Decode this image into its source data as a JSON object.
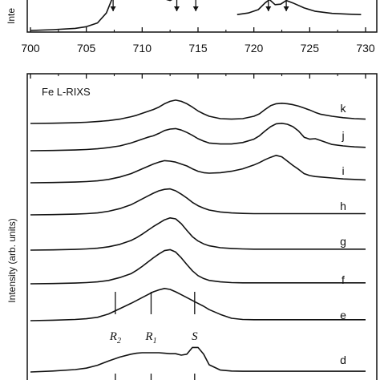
{
  "chart_data": [
    {
      "type": "line",
      "panel": "top",
      "ylabel": "Inte",
      "x_ticks": [
        "700",
        "705",
        "710",
        "715",
        "720",
        "725",
        "730"
      ],
      "xlim": [
        700,
        730
      ],
      "series": [
        {
          "x": [
            700,
            702,
            704,
            705,
            706,
            706.8,
            707.4,
            707.8,
            708.2
          ],
          "y": [
            0.0,
            0.02,
            0.05,
            0.09,
            0.18,
            0.42,
            0.82,
            0.95,
            1.0
          ]
        },
        {
          "x": [
            711.8,
            712.2,
            712.5,
            712.8,
            713.1
          ],
          "y": [
            0.9,
            0.74,
            0.72,
            0.76,
            0.86
          ]
        },
        {
          "x": [
            718.5,
            719.5,
            720.4,
            721.0,
            721.4,
            721.9,
            722.4,
            722.9,
            723.5,
            724.5,
            725.5,
            727,
            728.5,
            729.6
          ],
          "y": [
            0.38,
            0.42,
            0.5,
            0.66,
            0.74,
            0.62,
            0.63,
            0.72,
            0.66,
            0.54,
            0.46,
            0.41,
            0.39,
            0.38
          ]
        }
      ],
      "arrows_x": [
        707.4,
        713.1,
        714.8,
        721.3,
        722.9
      ]
    },
    {
      "type": "line",
      "panel": "bottom",
      "title": "Fe L-RIXS",
      "ylabel": "Intensity (arb. units)",
      "x": [
        700,
        702,
        704,
        705,
        706,
        707,
        708,
        709,
        709.5,
        710,
        710.5,
        711,
        711.5,
        712,
        712.5,
        713,
        713.5,
        714,
        714.5,
        715,
        715.5,
        716,
        717,
        718,
        719,
        720,
        720.5,
        721,
        721.5,
        722,
        722.5,
        723,
        723.5,
        724,
        724.5,
        725,
        725.5,
        726,
        727,
        728,
        729,
        730
      ],
      "series": [
        {
          "name": "k",
          "values": [
            0,
            0.01,
            0.03,
            0.05,
            0.08,
            0.12,
            0.18,
            0.28,
            0.34,
            0.42,
            0.5,
            0.58,
            0.68,
            0.82,
            0.92,
            0.97,
            0.92,
            0.82,
            0.68,
            0.52,
            0.4,
            0.3,
            0.2,
            0.18,
            0.2,
            0.3,
            0.4,
            0.58,
            0.74,
            0.82,
            0.84,
            0.82,
            0.78,
            0.72,
            0.64,
            0.56,
            0.46,
            0.38,
            0.3,
            0.24,
            0.2,
            0.18
          ]
        },
        {
          "name": "j",
          "values": [
            0,
            0.01,
            0.03,
            0.05,
            0.08,
            0.13,
            0.2,
            0.32,
            0.4,
            0.48,
            0.56,
            0.62,
            0.72,
            0.84,
            0.9,
            0.92,
            0.86,
            0.76,
            0.64,
            0.5,
            0.4,
            0.32,
            0.28,
            0.28,
            0.34,
            0.48,
            0.62,
            0.82,
            1.0,
            1.12,
            1.14,
            1.1,
            1.0,
            0.82,
            0.56,
            0.48,
            0.5,
            0.42,
            0.26,
            0.2,
            0.16,
            0.14
          ]
        },
        {
          "name": "i",
          "values": [
            0,
            0.01,
            0.03,
            0.05,
            0.08,
            0.14,
            0.24,
            0.38,
            0.48,
            0.58,
            0.68,
            0.78,
            0.86,
            0.92,
            0.9,
            0.86,
            0.78,
            0.7,
            0.58,
            0.48,
            0.42,
            0.4,
            0.42,
            0.48,
            0.58,
            0.74,
            0.84,
            0.96,
            1.06,
            1.14,
            1.08,
            0.9,
            0.72,
            0.56,
            0.38,
            0.3,
            0.26,
            0.24,
            0.2,
            0.16,
            0.14,
            0.12
          ]
        },
        {
          "name": "h",
          "values": [
            0,
            0.01,
            0.03,
            0.05,
            0.08,
            0.15,
            0.26,
            0.42,
            0.54,
            0.66,
            0.78,
            0.9,
            1.0,
            1.06,
            1.08,
            1.0,
            0.86,
            0.7,
            0.52,
            0.38,
            0.28,
            0.2,
            0.12,
            0.08,
            0.06,
            0.05,
            0.05,
            0.05,
            0.05,
            0.05,
            0.05,
            0.05,
            0.05,
            0.05,
            0.05,
            0.05,
            0.05,
            0.05,
            0.05,
            0.05,
            0.05,
            0.05
          ]
        },
        {
          "name": "g",
          "values": [
            0,
            0.01,
            0.03,
            0.05,
            0.08,
            0.14,
            0.24,
            0.4,
            0.52,
            0.66,
            0.82,
            0.98,
            1.12,
            1.26,
            1.34,
            1.3,
            1.1,
            0.82,
            0.56,
            0.38,
            0.26,
            0.18,
            0.1,
            0.07,
            0.05,
            0.04,
            0.04,
            0.04,
            0.04,
            0.04,
            0.04,
            0.04,
            0.04,
            0.04,
            0.04,
            0.04,
            0.04,
            0.04,
            0.04,
            0.04,
            0.04,
            0.04
          ]
        },
        {
          "name": "f",
          "values": [
            0,
            0.01,
            0.03,
            0.05,
            0.08,
            0.14,
            0.26,
            0.42,
            0.56,
            0.72,
            0.9,
            1.08,
            1.24,
            1.38,
            1.42,
            1.32,
            1.08,
            0.8,
            0.54,
            0.34,
            0.22,
            0.14,
            0.08,
            0.05,
            0.04,
            0.04,
            0.04,
            0.04,
            0.04,
            0.04,
            0.04,
            0.04,
            0.04,
            0.04,
            0.04,
            0.04,
            0.04,
            0.04,
            0.04,
            0.04,
            0.04,
            0.04
          ]
        },
        {
          "name": "e",
          "values": [
            0,
            0.02,
            0.05,
            0.08,
            0.14,
            0.28,
            0.5,
            0.72,
            0.84,
            0.96,
            1.08,
            1.2,
            1.28,
            1.34,
            1.3,
            1.2,
            1.08,
            0.96,
            0.84,
            0.72,
            0.6,
            0.46,
            0.26,
            0.1,
            0.05,
            0.04,
            0.04,
            0.04,
            0.04,
            0.04,
            0.04,
            0.04,
            0.04,
            0.04,
            0.04,
            0.04,
            0.04,
            0.04,
            0.04,
            0.04,
            0.04,
            0.04
          ]
        },
        {
          "name": "d",
          "values": [
            0,
            0.04,
            0.1,
            0.16,
            0.28,
            0.46,
            0.62,
            0.74,
            0.78,
            0.8,
            0.8,
            0.8,
            0.8,
            0.78,
            0.76,
            0.76,
            0.7,
            0.74,
            1.02,
            1.02,
            0.74,
            0.3,
            0.08,
            0.04,
            0.03,
            0.03,
            0.03,
            0.03,
            0.03,
            0.03,
            0.03,
            0.03,
            0.03,
            0.03,
            0.03,
            0.03,
            0.03,
            0.03,
            0.03,
            0.03,
            0.03,
            0.03
          ]
        }
      ],
      "peak_labels": [
        {
          "label": "R2",
          "x": 707.6
        },
        {
          "label": "R1",
          "x": 710.8
        },
        {
          "label": "S",
          "x": 714.7
        }
      ]
    }
  ]
}
